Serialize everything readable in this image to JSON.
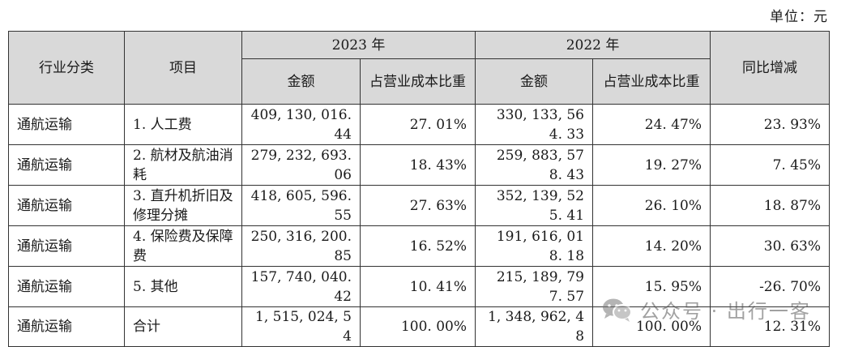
{
  "unit_label": "单位：元",
  "header": {
    "industry": "行业分类",
    "item": "项目",
    "year_2023": "2023 年",
    "year_2022": "2022 年",
    "amount_2023": "金额",
    "ratio_2023": "占营业成本比重",
    "amount_2022": "金额",
    "ratio_2022": "占营业成本比重",
    "yoy": "同比增减"
  },
  "rows": [
    {
      "industry": "通航运输",
      "item": "1. 人工费",
      "amount_2023": "409, 130, 016. 44",
      "ratio_2023": "27. 01%",
      "amount_2022": "330, 133, 564. 33",
      "ratio_2022": "24. 47%",
      "yoy": "23. 93%"
    },
    {
      "industry": "通航运输",
      "item": "2. 航材及航油消耗",
      "amount_2023": "279, 232, 693. 06",
      "ratio_2023": "18. 43%",
      "amount_2022": "259, 883, 578. 43",
      "ratio_2022": "19. 27%",
      "yoy": "7. 45%"
    },
    {
      "industry": "通航运输",
      "item": "3. 直升机折旧及修理分摊",
      "amount_2023": "418, 605, 596. 55",
      "ratio_2023": "27. 63%",
      "amount_2022": "352, 139, 525. 41",
      "ratio_2022": "26. 10%",
      "yoy": "18. 87%"
    },
    {
      "industry": "通航运输",
      "item": "4. 保险费及保障费",
      "amount_2023": "250, 316, 200. 85",
      "ratio_2023": "16. 52%",
      "amount_2022": "191, 616, 018. 18",
      "ratio_2022": "14. 20%",
      "yoy": "30. 63%"
    },
    {
      "industry": "通航运输",
      "item": "5. 其他",
      "amount_2023": "157, 740, 040. 42",
      "ratio_2023": "10. 41%",
      "amount_2022": "215, 189, 797. 57",
      "ratio_2022": "15. 95%",
      "yoy": "-26. 70%"
    },
    {
      "industry": "通航运输",
      "item": "合计",
      "amount_2023": "1, 515, 024, 54",
      "ratio_2023": "100. 00%",
      "amount_2022": "1, 348, 962, 48",
      "ratio_2022": "100. 00%",
      "yoy": "12. 31%"
    }
  ],
  "watermark": {
    "text": "公众号 · 出行一客",
    "icon": "wechat-icon"
  }
}
